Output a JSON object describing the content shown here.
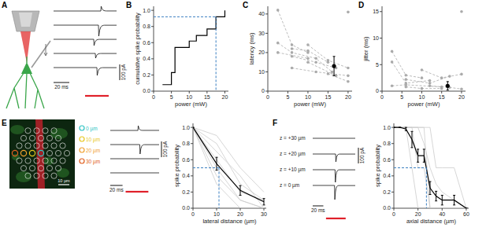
{
  "panels": [
    "A",
    "B",
    "C",
    "D",
    "E",
    "F"
  ],
  "panel_a": {
    "scale_current": {
      "value": 100,
      "label": "100 pA"
    },
    "scale_time": {
      "value": 20,
      "label": "20 ms"
    },
    "stimulus_ms": [
      40,
      70
    ],
    "traces": [
      {
        "time_ms": 60,
        "amplitude_pA": 30
      },
      {
        "time_ms": 57,
        "amplitude_pA": -70
      },
      {
        "time_ms": 51,
        "amplitude_pA": -40
      },
      {
        "time_ms": 53,
        "amplitude_pA": -30
      },
      {
        "time_ms": 55,
        "amplitude_pA": -50
      }
    ]
  },
  "panel_e": {
    "image_scale": "10 µm",
    "scale_current": {
      "value": 100,
      "label": "100 pA"
    },
    "scale_time": {
      "value": 20,
      "label": "20 ms"
    },
    "stimulus_ms": [
      25,
      62
    ],
    "targets": [
      {
        "label": "0 µm",
        "color": "#2ec4c4"
      },
      {
        "label": "10 µm",
        "color": "#e8c820"
      },
      {
        "label": "20 µm",
        "color": "#f0a030"
      },
      {
        "label": "30 µm",
        "color": "#e06020"
      }
    ],
    "traces": [
      {
        "time_ms": 45,
        "amplitude_pA": 30
      },
      {
        "time_ms": 48,
        "amplitude_pA": -60
      },
      {
        "time_ms": null,
        "amplitude_pA": null
      },
      {
        "time_ms": null,
        "amplitude_pA": null
      }
    ]
  },
  "panel_f": {
    "scale_current": {
      "value": 100,
      "label": "100 pA"
    },
    "scale_time": {
      "value": 20,
      "label": "20 ms"
    },
    "stimulus_ms": [
      25,
      62
    ],
    "traces": [
      {
        "label": "z = +30 µm",
        "time_ms": null,
        "amplitude_pA": null
      },
      {
        "label": "z = +20 µm",
        "time_ms": 43,
        "amplitude_pA": -50
      },
      {
        "label": "z = +10 µm",
        "time_ms": 42,
        "amplitude_pA": -80
      },
      {
        "label": "z = 0 µm",
        "time_ms": 41,
        "amplitude_pA": -90
      }
    ]
  },
  "chart_data": [
    {
      "type": "step",
      "x": [
        2.5,
        5,
        6,
        10,
        12,
        15,
        17.5,
        20
      ],
      "values": [
        0.08,
        0.23,
        0.54,
        0.62,
        0.69,
        0.77,
        0.92,
        1.0
      ],
      "color": "#000000",
      "x_label": "power (mW)",
      "y_label": "cumulative spike probability",
      "xlim": [
        0,
        21
      ],
      "ylim": [
        0,
        1.05
      ],
      "xticks": [
        0,
        5,
        10,
        15,
        20
      ],
      "yticks": [
        {
          "value": 0,
          "label": "0.0"
        },
        0.2,
        0.4,
        0.6,
        0.8,
        {
          "value": 1,
          "label": "1.0"
        }
      ],
      "reference_x": 17.5,
      "reference_y": 0.92
    },
    {
      "type": "line",
      "x_label": "power (mW)",
      "y_label": "latency (ms)",
      "xlim": [
        0,
        21
      ],
      "ylim": [
        0,
        44
      ],
      "xticks": [
        0,
        5,
        10,
        15,
        20
      ],
      "yticks": [
        0,
        10,
        20,
        30,
        40
      ],
      "series": [
        {
          "x": [
            2.5,
            6,
            10
          ],
          "values": [
            42,
            24,
            20
          ],
          "color": "#aaaaaa",
          "line_style": "dashed",
          "marker": "circle"
        },
        {
          "x": [
            2.5,
            6,
            12,
            16
          ],
          "values": [
            25,
            20,
            17,
            10
          ],
          "color": "#aaaaaa",
          "line_style": "dashed",
          "marker": "circle"
        },
        {
          "x": [
            2.5,
            10
          ],
          "values": [
            20,
            17
          ],
          "color": "#aaaaaa",
          "line_style": "dashed",
          "marker": "circle"
        },
        {
          "x": [
            6,
            10,
            15
          ],
          "values": [
            22,
            21,
            15
          ],
          "color": "#aaaaaa",
          "line_style": "dashed",
          "marker": "circle"
        },
        {
          "x": [
            6,
            12,
            17
          ],
          "values": [
            18,
            15,
            12
          ],
          "color": "#aaaaaa",
          "line_style": "dashed",
          "marker": "circle"
        },
        {
          "x": [
            10,
            15,
            20
          ],
          "values": [
            24,
            16,
            12
          ],
          "color": "#aaaaaa",
          "line_style": "dashed",
          "marker": "circle"
        },
        {
          "x": [
            10,
            17
          ],
          "values": [
            15,
            8
          ],
          "color": "#aaaaaa",
          "line_style": "dashed",
          "marker": "circle"
        },
        {
          "x": [
            6,
            12,
            20
          ],
          "values": [
            12,
            10,
            8
          ],
          "color": "#aaaaaa",
          "line_style": "dashed",
          "marker": "circle"
        },
        {
          "x": [
            15,
            20
          ],
          "values": [
            9,
            5
          ],
          "color": "#aaaaaa",
          "line_style": "dashed",
          "marker": "circle"
        },
        {
          "x": [
            20
          ],
          "values": [
            41
          ],
          "color": "#aaaaaa",
          "line_style": "dashed",
          "marker": "circle"
        },
        {
          "x": [
            16.5
          ],
          "values": [
            13
          ],
          "errors": [
            5
          ],
          "color": "#000000",
          "line_style": "none",
          "marker": "circle"
        }
      ]
    },
    {
      "type": "line",
      "x_label": "power (mW)",
      "y_label": "jitter (ms)",
      "xlim": [
        0,
        21
      ],
      "ylim": [
        0,
        16
      ],
      "xticks": [
        0,
        5,
        10,
        15,
        20
      ],
      "yticks": [
        0,
        5,
        10,
        15
      ],
      "series": [
        {
          "x": [
            2.5,
            6,
            10
          ],
          "values": [
            7.5,
            3,
            2.5
          ],
          "color": "#aaaaaa",
          "line_style": "dashed",
          "marker": "circle"
        },
        {
          "x": [
            2.5,
            6,
            12
          ],
          "values": [
            5.5,
            1.5,
            2
          ],
          "color": "#aaaaaa",
          "line_style": "dashed",
          "marker": "circle"
        },
        {
          "x": [
            2.5,
            6,
            15
          ],
          "values": [
            1,
            1.2,
            0.8
          ],
          "color": "#aaaaaa",
          "line_style": "dashed",
          "marker": "circle"
        },
        {
          "x": [
            6,
            12,
            17
          ],
          "values": [
            2.2,
            1.5,
            2.8
          ],
          "color": "#aaaaaa",
          "line_style": "dashed",
          "marker": "circle"
        },
        {
          "x": [
            10,
            15,
            20
          ],
          "values": [
            4,
            2.5,
            3.2
          ],
          "color": "#aaaaaa",
          "line_style": "dashed",
          "marker": "circle"
        },
        {
          "x": [
            6,
            10,
            15
          ],
          "values": [
            0.8,
            0.5,
            0.5
          ],
          "color": "#aaaaaa",
          "line_style": "dashed",
          "marker": "circle"
        },
        {
          "x": [
            12,
            17,
            20
          ],
          "values": [
            1,
            0.7,
            0.4
          ],
          "color": "#aaaaaa",
          "line_style": "dashed",
          "marker": "circle"
        },
        {
          "x": [
            20
          ],
          "values": [
            15
          ],
          "color": "#aaaaaa",
          "line_style": "dashed",
          "marker": "circle"
        },
        {
          "x": [
            16.5
          ],
          "values": [
            1
          ],
          "errors": [
            0.8
          ],
          "color": "#000000",
          "line_style": "none",
          "marker": "circle"
        }
      ]
    },
    {
      "type": "line",
      "x": [
        0,
        10,
        20,
        30
      ],
      "x_label": "lateral distance (µm)",
      "y_label": "spike probability",
      "xlim": [
        0,
        31
      ],
      "ylim": [
        0,
        1.05
      ],
      "xticks": [
        0,
        10,
        20,
        30
      ],
      "yticks": [
        {
          "value": 0,
          "label": "0.0"
        },
        0.2,
        0.4,
        0.6,
        0.8,
        {
          "value": 1,
          "label": "1.0"
        }
      ],
      "reference_x": 11,
      "reference_y": 0.5,
      "series": [
        {
          "values": [
            1,
            0.8,
            0.3,
            0.1
          ],
          "color": "#cccccc",
          "line_style": "solid",
          "marker": "none"
        },
        {
          "values": [
            1,
            0.4,
            0.1,
            0
          ],
          "color": "#cccccc",
          "line_style": "solid",
          "marker": "none"
        },
        {
          "values": [
            1,
            0.9,
            0.5,
            0.2
          ],
          "color": "#cccccc",
          "line_style": "solid",
          "marker": "none"
        },
        {
          "values": [
            1,
            0.3,
            0,
            0
          ],
          "color": "#cccccc",
          "line_style": "solid",
          "marker": "none"
        },
        {
          "values": [
            1,
            0.6,
            0.2,
            0.1
          ],
          "color": "#cccccc",
          "line_style": "solid",
          "marker": "none"
        },
        {
          "values": [
            1,
            0.7,
            0.4,
            0
          ],
          "color": "#cccccc",
          "line_style": "solid",
          "marker": "none"
        },
        {
          "values": [
            1,
            0.5,
            0.1,
            0
          ],
          "color": "#cccccc",
          "line_style": "solid",
          "marker": "none"
        },
        {
          "values": [
            1,
            0.55,
            0.22,
            0.08
          ],
          "errors": [
            0,
            0.08,
            0.06,
            0.04
          ],
          "color": "#000000",
          "line_style": "solid",
          "marker": "none"
        }
      ]
    },
    {
      "type": "line",
      "x": [
        0,
        5,
        10,
        15,
        20,
        25,
        30,
        35,
        40,
        50,
        60
      ],
      "x_label": "axial distance (µm)",
      "y_label": "spike probability",
      "xlim": [
        0,
        62
      ],
      "ylim": [
        0,
        1.05
      ],
      "xticks": [
        0,
        20,
        40,
        60
      ],
      "yticks": [
        {
          "value": 0,
          "label": "0.0"
        },
        0.2,
        0.4,
        0.6,
        0.8,
        {
          "value": 1,
          "label": "1.0"
        }
      ],
      "reference_x": 27,
      "reference_y": 0.5,
      "series": [
        {
          "values": [
            1,
            1,
            1,
            1,
            1,
            1,
            0,
            0,
            0,
            0,
            0
          ],
          "color": "#cccccc",
          "line_style": "solid",
          "marker": "none"
        },
        {
          "values": [
            1,
            1,
            1,
            0.5,
            0,
            0,
            0,
            0,
            0,
            0,
            0
          ],
          "color": "#cccccc",
          "line_style": "solid",
          "marker": "none"
        },
        {
          "values": [
            1,
            1,
            1,
            1,
            1,
            0.8,
            0.5,
            0.3,
            0.2,
            0.1,
            0
          ],
          "color": "#cccccc",
          "line_style": "solid",
          "marker": "none"
        },
        {
          "values": [
            1,
            1,
            1,
            1,
            0.5,
            0.5,
            0,
            0,
            0,
            0,
            0
          ],
          "color": "#cccccc",
          "line_style": "solid",
          "marker": "none"
        },
        {
          "values": [
            1,
            1,
            1,
            1,
            1,
            1,
            1,
            0.5,
            0.5,
            0.5,
            0
          ],
          "color": "#cccccc",
          "line_style": "solid",
          "marker": "none"
        },
        {
          "values": [
            1,
            1,
            0.98,
            0.85,
            0.65,
            0.65,
            0.25,
            0.15,
            0.1,
            0.1,
            0
          ],
          "errors": [
            0,
            0,
            0.02,
            0.1,
            0.08,
            0.08,
            0.08,
            0.06,
            0.06,
            0.06,
            0
          ],
          "color": "#000000",
          "line_style": "solid",
          "marker": "none"
        }
      ]
    }
  ]
}
